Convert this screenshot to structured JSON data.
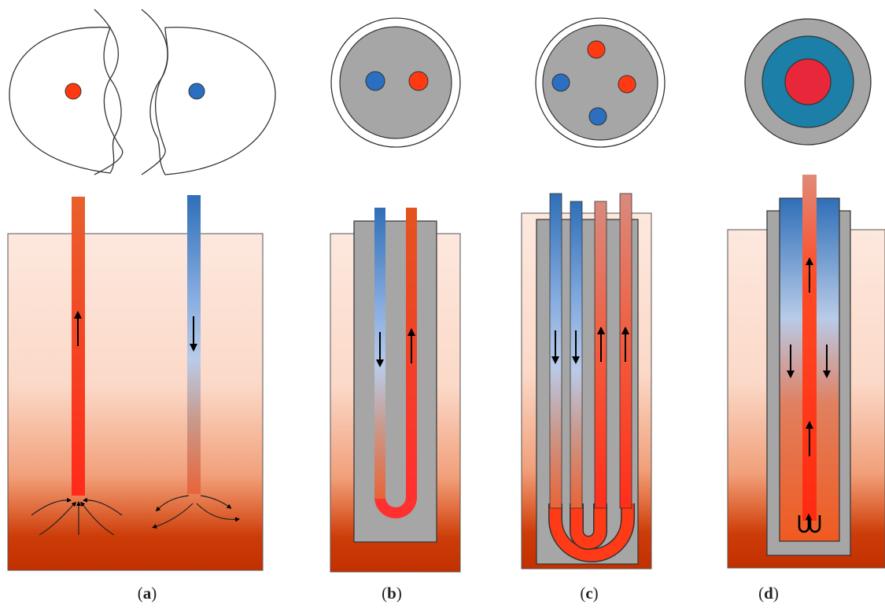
{
  "panels": [
    {
      "id": "a",
      "label": "a"
    },
    {
      "id": "b",
      "label": "b"
    },
    {
      "id": "c",
      "label": "c"
    },
    {
      "id": "d",
      "label": "d"
    }
  ],
  "colors": {
    "hot": "#ff3a1e",
    "hot_pipe": "#e8501e",
    "cold": "#2f6fb8",
    "cold_light": "#b7cbe8",
    "grout": "#a6a6a6",
    "ground_top": "#fde6dc",
    "ground_mid": "#f2a27c",
    "ground_bottom": "#c83400",
    "annulus": "#1b7fa8",
    "core": "#e8283a"
  }
}
